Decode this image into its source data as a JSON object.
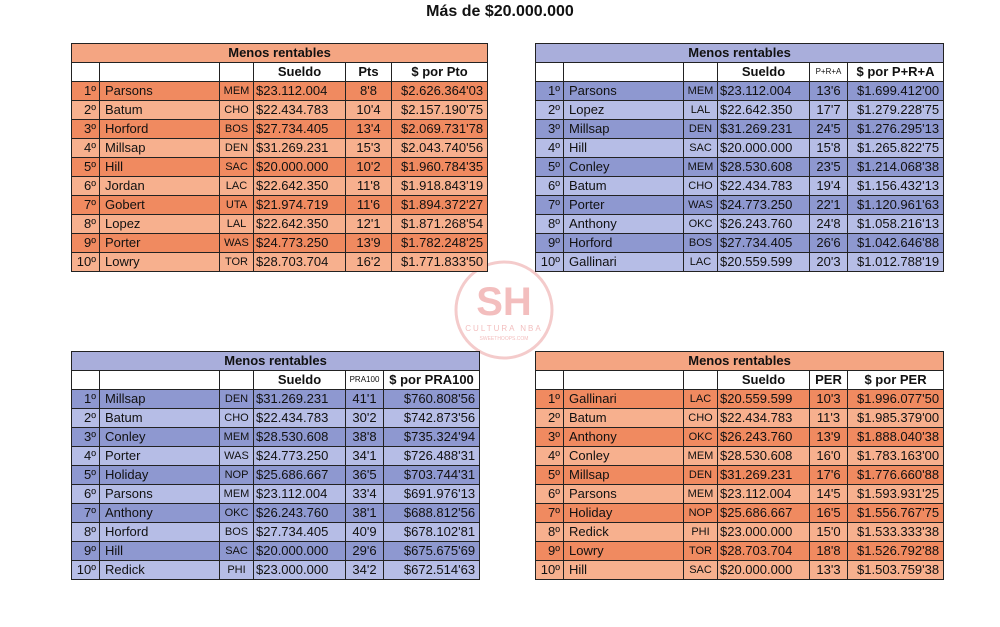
{
  "title": "Más de $20.000.000",
  "watermark": {
    "initials": "SH",
    "line1": "CULTURA NBA",
    "line2": "SWEETHOOPS.COM"
  },
  "tables": [
    {
      "theme": "orange",
      "caption": "Menos rentables",
      "headers": [
        "",
        "",
        "",
        "Sueldo",
        "Pts",
        "$ por Pto"
      ],
      "rows": [
        [
          "1º",
          "Parsons",
          "MEM",
          "$23.112.004",
          "8'8",
          "$2.626.364'03"
        ],
        [
          "2º",
          "Batum",
          "CHO",
          "$22.434.783",
          "10'4",
          "$2.157.190'75"
        ],
        [
          "3º",
          "Horford",
          "BOS",
          "$27.734.405",
          "13'4",
          "$2.069.731'78"
        ],
        [
          "4º",
          "Millsap",
          "DEN",
          "$31.269.231",
          "15'3",
          "$2.043.740'56"
        ],
        [
          "5º",
          "Hill",
          "SAC",
          "$20.000.000",
          "10'2",
          "$1.960.784'35"
        ],
        [
          "6º",
          "Jordan",
          "LAC",
          "$22.642.350",
          "11'8",
          "$1.918.843'19"
        ],
        [
          "7º",
          "Gobert",
          "UTA",
          "$21.974.719",
          "11'6",
          "$1.894.372'27"
        ],
        [
          "8º",
          "Lopez",
          "LAL",
          "$22.642.350",
          "12'1",
          "$1.871.268'54"
        ],
        [
          "9º",
          "Porter",
          "WAS",
          "$24.773.250",
          "13'9",
          "$1.782.248'25"
        ],
        [
          "10º",
          "Lowry",
          "TOR",
          "$28.703.704",
          "16'2",
          "$1.771.833'50"
        ]
      ]
    },
    {
      "theme": "blue",
      "caption": "Menos rentables",
      "headers": [
        "",
        "",
        "",
        "Sueldo",
        "P+R+A",
        "$ por P+R+A"
      ],
      "rows": [
        [
          "1º",
          "Parsons",
          "MEM",
          "$23.112.004",
          "13'6",
          "$1.699.412'00"
        ],
        [
          "2º",
          "Lopez",
          "LAL",
          "$22.642.350",
          "17'7",
          "$1.279.228'75"
        ],
        [
          "3º",
          "Millsap",
          "DEN",
          "$31.269.231",
          "24'5",
          "$1.276.295'13"
        ],
        [
          "4º",
          "Hill",
          "SAC",
          "$20.000.000",
          "15'8",
          "$1.265.822'75"
        ],
        [
          "5º",
          "Conley",
          "MEM",
          "$28.530.608",
          "23'5",
          "$1.214.068'38"
        ],
        [
          "6º",
          "Batum",
          "CHO",
          "$22.434.783",
          "19'4",
          "$1.156.432'13"
        ],
        [
          "7º",
          "Porter",
          "WAS",
          "$24.773.250",
          "22'1",
          "$1.120.961'63"
        ],
        [
          "8º",
          "Anthony",
          "OKC",
          "$26.243.760",
          "24'8",
          "$1.058.216'13"
        ],
        [
          "9º",
          "Horford",
          "BOS",
          "$27.734.405",
          "26'6",
          "$1.042.646'88"
        ],
        [
          "10º",
          "Gallinari",
          "LAC",
          "$20.559.599",
          "20'3",
          "$1.012.788'19"
        ]
      ]
    },
    {
      "theme": "blue",
      "caption": "Menos rentables",
      "headers": [
        "",
        "",
        "",
        "Sueldo",
        "PRA100",
        "$ por PRA100"
      ],
      "rows": [
        [
          "1º",
          "Millsap",
          "DEN",
          "$31.269.231",
          "41'1",
          "$760.808'56"
        ],
        [
          "2º",
          "Batum",
          "CHO",
          "$22.434.783",
          "30'2",
          "$742.873'56"
        ],
        [
          "3º",
          "Conley",
          "MEM",
          "$28.530.608",
          "38'8",
          "$735.324'94"
        ],
        [
          "4º",
          "Porter",
          "WAS",
          "$24.773.250",
          "34'1",
          "$726.488'31"
        ],
        [
          "5º",
          "Holiday",
          "NOP",
          "$25.686.667",
          "36'5",
          "$703.744'31"
        ],
        [
          "6º",
          "Parsons",
          "MEM",
          "$23.112.004",
          "33'4",
          "$691.976'13"
        ],
        [
          "7º",
          "Anthony",
          "OKC",
          "$26.243.760",
          "38'1",
          "$688.812'56"
        ],
        [
          "8º",
          "Horford",
          "BOS",
          "$27.734.405",
          "40'9",
          "$678.102'81"
        ],
        [
          "9º",
          "Hill",
          "SAC",
          "$20.000.000",
          "29'6",
          "$675.675'69"
        ],
        [
          "10º",
          "Redick",
          "PHI",
          "$23.000.000",
          "34'2",
          "$672.514'63"
        ]
      ]
    },
    {
      "theme": "orange",
      "caption": "Menos rentables",
      "headers": [
        "",
        "",
        "",
        "Sueldo",
        "PER",
        "$ por PER"
      ],
      "rows": [
        [
          "1º",
          "Gallinari",
          "LAC",
          "$20.559.599",
          "10'3",
          "$1.996.077'50"
        ],
        [
          "2º",
          "Batum",
          "CHO",
          "$22.434.783",
          "11'3",
          "$1.985.379'00"
        ],
        [
          "3º",
          "Anthony",
          "OKC",
          "$26.243.760",
          "13'9",
          "$1.888.040'38"
        ],
        [
          "4º",
          "Conley",
          "MEM",
          "$28.530.608",
          "16'0",
          "$1.783.163'00"
        ],
        [
          "5º",
          "Millsap",
          "DEN",
          "$31.269.231",
          "17'6",
          "$1.776.660'88"
        ],
        [
          "6º",
          "Parsons",
          "MEM",
          "$23.112.004",
          "14'5",
          "$1.593.931'25"
        ],
        [
          "7º",
          "Holiday",
          "NOP",
          "$25.686.667",
          "16'5",
          "$1.556.767'75"
        ],
        [
          "8º",
          "Redick",
          "PHI",
          "$23.000.000",
          "15'0",
          "$1.533.333'38"
        ],
        [
          "9º",
          "Lowry",
          "TOR",
          "$28.703.704",
          "18'8",
          "$1.526.792'88"
        ],
        [
          "10º",
          "Hill",
          "SAC",
          "$20.000.000",
          "13'3",
          "$1.503.759'38"
        ]
      ]
    }
  ]
}
